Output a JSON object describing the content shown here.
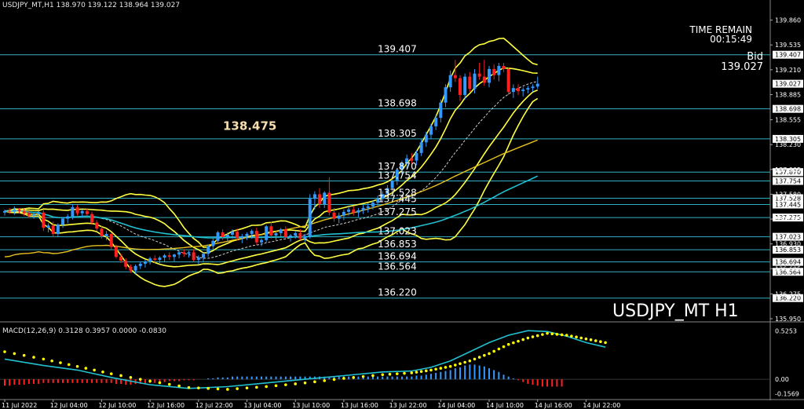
{
  "header": {
    "symbol_timeframe": "USDJPY_MT,H1",
    "ohlc": "138.970 139.122 138.964 139.027"
  },
  "time_remain": {
    "label": "TIME REMAIN",
    "value": "00:15:49"
  },
  "bid": {
    "label": "Bid",
    "value": "139.027"
  },
  "big_label": "USDJPY_MT H1",
  "macd_label": "MACD(12,26,9) 0.3128 0.3957 0.0000 -0.0830",
  "colors": {
    "background": "#000000",
    "bull": "#3399ff",
    "bear": "#ff2020",
    "bands": "#ffff40",
    "level_line": "#30b0c0",
    "sma_long": "#e6c020",
    "ema_cyan": "#20c0d0",
    "macd_signal": "#ffff00",
    "macd_line": "#20c0d0",
    "axis_text": "#ffffff",
    "tag_bg": "#ffffff"
  },
  "chart_data": {
    "type": "candlestick",
    "symbol": "USDJPY_MT",
    "timeframe": "H1",
    "ylim": [
      135.95,
      140.0
    ],
    "price_ticks": [
      {
        "value": 139.86,
        "label": "139.860"
      },
      {
        "value": 139.535,
        "label": "139.535"
      },
      {
        "value": 139.21,
        "label": "139.210"
      },
      {
        "value": 138.885,
        "label": "138.885"
      },
      {
        "value": 138.555,
        "label": "138.555"
      },
      {
        "value": 138.23,
        "label": "138.230"
      },
      {
        "value": 137.905,
        "label": "137.905"
      },
      {
        "value": 137.58,
        "label": "137.580"
      },
      {
        "value": 137.255,
        "label": "137.255"
      },
      {
        "value": 136.93,
        "label": "136.930"
      },
      {
        "value": 136.605,
        "label": "136.605"
      },
      {
        "value": 136.275,
        "label": "136.275"
      },
      {
        "value": 135.95,
        "label": "135.950"
      }
    ],
    "levels": [
      {
        "value": 139.407,
        "label": "139.407"
      },
      {
        "value": 138.698,
        "label": "138.698"
      },
      {
        "value": 138.305,
        "label": "138.305"
      },
      {
        "value": 137.87,
        "label": "137.870"
      },
      {
        "value": 137.754,
        "label": "137.754"
      },
      {
        "value": 137.528,
        "label": "137.528"
      },
      {
        "value": 137.445,
        "label": "137.445"
      },
      {
        "value": 137.275,
        "label": "137.275"
      },
      {
        "value": 137.023,
        "label": "137.023"
      },
      {
        "value": 136.853,
        "label": "136.853"
      },
      {
        "value": 136.694,
        "label": "136.694"
      },
      {
        "value": 136.564,
        "label": "136.564"
      },
      {
        "value": 136.22,
        "label": "136.220"
      }
    ],
    "level_label_x_index": 77,
    "pivot_annotation": {
      "value": 138.475,
      "label": "138.475"
    },
    "current_price": {
      "value": 139.027,
      "label": "139.027"
    },
    "x_labels": [
      {
        "index": 0,
        "label": "11 Jul 2022"
      },
      {
        "index": 10,
        "label": "12 Jul 04:00"
      },
      {
        "index": 20,
        "label": "12 Jul 10:00"
      },
      {
        "index": 30,
        "label": "12 Jul 16:00"
      },
      {
        "index": 40,
        "label": "12 Jul 22:00"
      },
      {
        "index": 50,
        "label": "13 Jul 04:00"
      },
      {
        "index": 60,
        "label": "13 Jul 10:00"
      },
      {
        "index": 70,
        "label": "13 Jul 16:00"
      },
      {
        "index": 80,
        "label": "13 Jul 22:00"
      },
      {
        "index": 90,
        "label": "14 Jul 04:00"
      },
      {
        "index": 100,
        "label": "14 Jul 10:00"
      },
      {
        "index": 110,
        "label": "14 Jul 16:00"
      },
      {
        "index": 120,
        "label": "14 Jul 22:00"
      }
    ],
    "candles": [
      [
        137.34,
        137.38,
        137.3,
        137.36
      ],
      [
        137.36,
        137.4,
        137.32,
        137.35
      ],
      [
        137.35,
        137.42,
        137.31,
        137.38
      ],
      [
        137.38,
        137.4,
        137.33,
        137.36
      ],
      [
        137.36,
        137.39,
        137.3,
        137.33
      ],
      [
        137.33,
        137.36,
        137.27,
        137.3
      ],
      [
        137.3,
        137.34,
        137.26,
        137.32
      ],
      [
        137.32,
        137.36,
        137.28,
        137.34
      ],
      [
        137.34,
        137.37,
        137.1,
        137.14
      ],
      [
        137.14,
        137.2,
        137.08,
        137.17
      ],
      [
        137.17,
        137.22,
        137.02,
        137.06
      ],
      [
        137.06,
        137.2,
        137.02,
        137.18
      ],
      [
        137.18,
        137.28,
        137.14,
        137.26
      ],
      [
        137.26,
        137.32,
        137.2,
        137.29
      ],
      [
        137.29,
        137.45,
        137.25,
        137.41
      ],
      [
        137.41,
        137.44,
        137.3,
        137.33
      ],
      [
        137.33,
        137.38,
        137.28,
        137.36
      ],
      [
        137.36,
        137.39,
        137.3,
        137.32
      ],
      [
        137.32,
        137.35,
        137.18,
        137.21
      ],
      [
        137.21,
        137.24,
        137.1,
        137.13
      ],
      [
        137.13,
        137.16,
        137.0,
        137.03
      ],
      [
        137.03,
        137.1,
        136.98,
        137.06
      ],
      [
        137.06,
        137.08,
        136.86,
        136.89
      ],
      [
        136.89,
        136.92,
        136.74,
        136.76
      ],
      [
        136.76,
        136.8,
        136.68,
        136.71
      ],
      [
        136.71,
        136.74,
        136.6,
        136.63
      ],
      [
        136.63,
        136.66,
        136.55,
        136.58
      ],
      [
        136.58,
        136.66,
        136.54,
        136.64
      ],
      [
        136.64,
        136.7,
        136.6,
        136.67
      ],
      [
        136.67,
        136.72,
        136.62,
        136.7
      ],
      [
        136.7,
        136.76,
        136.66,
        136.74
      ],
      [
        136.74,
        136.78,
        136.68,
        136.72
      ],
      [
        136.72,
        136.77,
        136.68,
        136.75
      ],
      [
        136.75,
        136.8,
        136.7,
        136.78
      ],
      [
        136.78,
        136.82,
        136.72,
        136.76
      ],
      [
        136.76,
        136.8,
        136.7,
        136.79
      ],
      [
        136.79,
        136.84,
        136.74,
        136.82
      ],
      [
        136.82,
        136.86,
        136.76,
        136.8
      ],
      [
        136.8,
        136.84,
        136.75,
        136.82
      ],
      [
        136.82,
        136.86,
        136.7,
        136.72
      ],
      [
        136.72,
        136.78,
        136.66,
        136.75
      ],
      [
        136.75,
        136.82,
        136.7,
        136.8
      ],
      [
        136.8,
        136.92,
        136.76,
        136.9
      ],
      [
        136.9,
        137.0,
        136.86,
        136.97
      ],
      [
        136.97,
        137.1,
        136.93,
        137.08
      ],
      [
        137.08,
        137.12,
        136.98,
        137.02
      ],
      [
        137.02,
        137.08,
        136.96,
        137.05
      ],
      [
        137.05,
        137.12,
        137.0,
        137.09
      ],
      [
        137.09,
        137.13,
        136.98,
        137.01
      ],
      [
        137.01,
        137.06,
        136.94,
        137.03
      ],
      [
        137.03,
        137.08,
        136.98,
        137.06
      ],
      [
        137.06,
        137.12,
        137.0,
        137.1
      ],
      [
        137.1,
        137.14,
        136.92,
        136.95
      ],
      [
        136.95,
        137.0,
        136.9,
        136.98
      ],
      [
        136.98,
        137.18,
        136.95,
        137.16
      ],
      [
        137.16,
        137.22,
        137.0,
        137.04
      ],
      [
        137.04,
        137.1,
        136.98,
        137.07
      ],
      [
        137.07,
        137.14,
        137.02,
        137.12
      ],
      [
        137.12,
        137.16,
        137.0,
        137.02
      ],
      [
        137.02,
        137.06,
        136.96,
        137.04
      ],
      [
        137.04,
        137.1,
        137.0,
        137.07
      ],
      [
        137.07,
        137.12,
        136.98,
        137.0
      ],
      [
        137.0,
        137.06,
        136.96,
        137.03
      ],
      [
        137.03,
        137.58,
        137.0,
        137.52
      ],
      [
        137.52,
        137.62,
        137.38,
        137.58
      ],
      [
        137.58,
        137.66,
        137.4,
        137.45
      ],
      [
        137.45,
        137.62,
        137.4,
        137.6
      ],
      [
        137.6,
        137.8,
        137.3,
        137.34
      ],
      [
        137.34,
        137.4,
        137.22,
        137.26
      ],
      [
        137.26,
        137.34,
        137.2,
        137.3
      ],
      [
        137.3,
        137.38,
        137.24,
        137.35
      ],
      [
        137.35,
        137.42,
        137.3,
        137.38
      ],
      [
        137.38,
        137.42,
        137.3,
        137.34
      ],
      [
        137.34,
        137.4,
        137.28,
        137.37
      ],
      [
        137.37,
        137.44,
        137.32,
        137.4
      ],
      [
        137.4,
        137.46,
        137.34,
        137.42
      ],
      [
        137.42,
        137.5,
        137.38,
        137.47
      ],
      [
        137.47,
        137.56,
        137.42,
        137.52
      ],
      [
        137.52,
        137.62,
        137.48,
        137.58
      ],
      [
        137.58,
        137.7,
        137.54,
        137.66
      ],
      [
        137.66,
        137.8,
        137.6,
        137.76
      ],
      [
        137.76,
        137.92,
        137.7,
        137.9
      ],
      [
        137.9,
        138.02,
        137.84,
        137.98
      ],
      [
        137.98,
        138.1,
        137.92,
        138.05
      ],
      [
        138.05,
        138.12,
        137.98,
        138.02
      ],
      [
        138.02,
        138.15,
        137.96,
        138.12
      ],
      [
        138.12,
        138.3,
        138.08,
        138.26
      ],
      [
        138.26,
        138.4,
        138.2,
        138.36
      ],
      [
        138.36,
        138.5,
        138.3,
        138.47
      ],
      [
        138.47,
        138.62,
        138.42,
        138.58
      ],
      [
        138.58,
        138.82,
        138.52,
        138.78
      ],
      [
        138.78,
        139.02,
        138.72,
        138.98
      ],
      [
        138.98,
        139.2,
        138.92,
        139.14
      ],
      [
        139.14,
        139.34,
        139.05,
        139.1
      ],
      [
        139.1,
        139.14,
        138.8,
        138.88
      ],
      [
        138.88,
        139.16,
        138.82,
        139.12
      ],
      [
        139.12,
        139.18,
        138.92,
        138.96
      ],
      [
        138.96,
        139.22,
        138.9,
        139.16
      ],
      [
        139.16,
        139.3,
        139.08,
        139.12
      ],
      [
        139.12,
        139.34,
        139.0,
        139.04
      ],
      [
        139.04,
        139.26,
        138.98,
        139.22
      ],
      [
        139.22,
        139.28,
        139.08,
        139.14
      ],
      [
        139.14,
        139.3,
        139.06,
        139.26
      ],
      [
        139.26,
        139.3,
        139.18,
        139.22
      ],
      [
        139.22,
        139.24,
        138.88,
        138.92
      ],
      [
        138.92,
        139.02,
        138.84,
        138.97
      ],
      [
        138.97,
        139.02,
        138.88,
        138.93
      ],
      [
        138.93,
        138.98,
        138.86,
        138.95
      ],
      [
        138.95,
        139.0,
        138.9,
        138.97
      ],
      [
        138.97,
        139.02,
        138.92,
        138.99
      ],
      [
        138.99,
        139.12,
        138.96,
        139.027
      ]
    ],
    "macd": {
      "ylim": [
        -0.17,
        0.54
      ],
      "zero_label": "0.00",
      "ticks": [
        {
          "value": 0.5253,
          "label": "0.5253"
        },
        {
          "value": 0.0,
          "label": "0.00"
        },
        {
          "value": -0.1569,
          "label": "-0.1569"
        }
      ],
      "main_points": [
        [
          0,
          0.22
        ],
        [
          8,
          0.15
        ],
        [
          15,
          0.1
        ],
        [
          22,
          0.02
        ],
        [
          30,
          -0.06
        ],
        [
          38,
          -0.1
        ],
        [
          46,
          -0.08
        ],
        [
          54,
          -0.04
        ],
        [
          62,
          0.0
        ],
        [
          70,
          0.04
        ],
        [
          78,
          0.08
        ],
        [
          84,
          0.09
        ],
        [
          88,
          0.13
        ],
        [
          92,
          0.2
        ],
        [
          96,
          0.3
        ],
        [
          100,
          0.4
        ],
        [
          104,
          0.48
        ],
        [
          108,
          0.53
        ],
        [
          112,
          0.52
        ],
        [
          116,
          0.47
        ],
        [
          120,
          0.4
        ],
        [
          124,
          0.35
        ]
      ],
      "signal_points": [
        [
          0,
          0.3
        ],
        [
          8,
          0.22
        ],
        [
          15,
          0.14
        ],
        [
          22,
          0.06
        ],
        [
          30,
          -0.02
        ],
        [
          38,
          -0.09
        ],
        [
          46,
          -0.11
        ],
        [
          54,
          -0.08
        ],
        [
          62,
          -0.04
        ],
        [
          70,
          0.01
        ],
        [
          78,
          0.05
        ],
        [
          84,
          0.07
        ],
        [
          88,
          0.1
        ],
        [
          92,
          0.14
        ],
        [
          96,
          0.2
        ],
        [
          100,
          0.28
        ],
        [
          104,
          0.38
        ],
        [
          108,
          0.45
        ],
        [
          112,
          0.5
        ],
        [
          116,
          0.48
        ],
        [
          120,
          0.44
        ],
        [
          124,
          0.4
        ]
      ],
      "histogram": [
        -0.07,
        -0.07,
        -0.06,
        -0.06,
        -0.06,
        -0.05,
        -0.05,
        -0.05,
        -0.04,
        -0.04,
        -0.04,
        -0.04,
        -0.04,
        -0.04,
        -0.04,
        -0.04,
        -0.04,
        -0.04,
        -0.04,
        -0.04,
        -0.04,
        -0.04,
        -0.04,
        -0.05,
        -0.05,
        -0.06,
        -0.06,
        -0.05,
        -0.05,
        -0.05,
        -0.04,
        -0.04,
        -0.03,
        -0.03,
        -0.02,
        -0.02,
        -0.02,
        -0.01,
        -0.01,
        -0.01,
        0.0,
        0.0,
        0.01,
        0.01,
        0.02,
        0.02,
        0.02,
        0.03,
        0.03,
        0.03,
        0.03,
        0.03,
        0.03,
        0.03,
        0.03,
        0.03,
        0.03,
        0.03,
        0.03,
        0.03,
        0.03,
        0.03,
        0.03,
        0.03,
        0.03,
        0.03,
        0.03,
        0.03,
        0.03,
        0.03,
        0.03,
        0.03,
        0.03,
        0.03,
        0.03,
        0.03,
        0.03,
        0.03,
        0.03,
        0.03,
        0.03,
        0.03,
        0.03,
        0.03,
        0.03,
        0.04,
        0.04,
        0.05,
        0.06,
        0.07,
        0.08,
        0.09,
        0.1,
        0.12,
        0.13,
        0.15,
        0.16,
        0.16,
        0.15,
        0.14,
        0.12,
        0.1,
        0.08,
        0.05,
        0.03,
        0.01,
        -0.01,
        -0.03,
        -0.05,
        -0.06,
        -0.07,
        -0.08,
        -0.08,
        -0.08,
        -0.08,
        -0.08
      ]
    }
  }
}
